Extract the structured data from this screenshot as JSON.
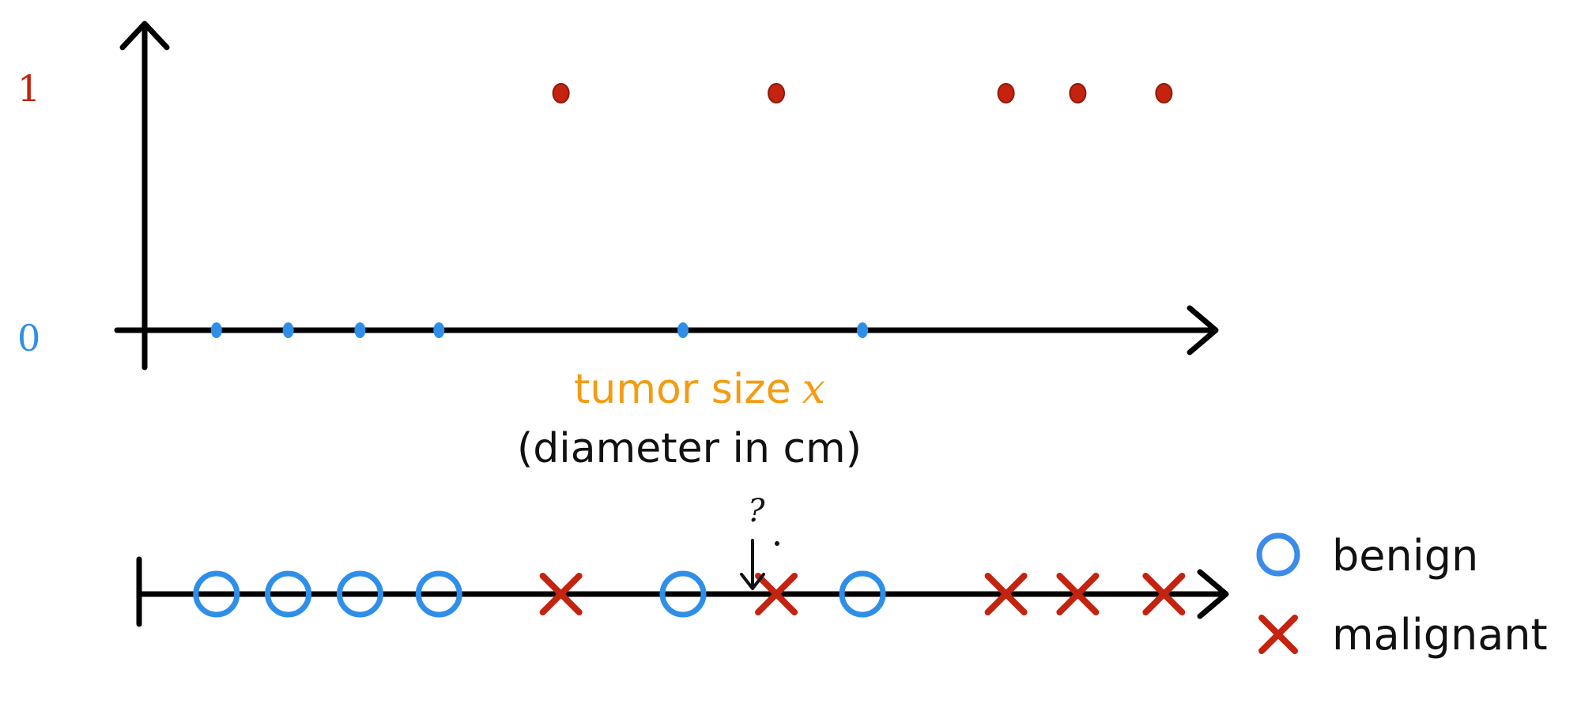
{
  "colors": {
    "benign": "#2f8fe8",
    "malignant": "#c3230f",
    "axis": "#000000",
    "xlabel": "#f39c12",
    "ytick_0": "#2f8fe8",
    "ytick_1": "#c3230f",
    "legend_benign": "#3b8be8",
    "legend_malignant": "#c3230f"
  },
  "chart_data": {
    "type": "scatter",
    "yticks": [
      "1",
      "0"
    ],
    "xlabel": "tumor size",
    "xlabel_var": "x",
    "xlabel_sub": "(diameter in cm)",
    "ylim": [
      0,
      1
    ],
    "x_range": [
      0,
      15
    ],
    "series": [
      {
        "name": "benign",
        "x": [
          1,
          2,
          3,
          4.1,
          7.5,
          10
        ],
        "y": [
          0,
          0,
          0,
          0,
          0,
          0
        ]
      },
      {
        "name": "malignant",
        "x": [
          5.8,
          8.8,
          12,
          13,
          14.2
        ],
        "y": [
          1,
          1,
          1,
          1,
          1
        ]
      }
    ]
  },
  "number_line": {
    "benign_x": [
      1,
      2,
      3,
      4.1,
      7.5,
      10
    ],
    "malignant_x": [
      5.8,
      8.8,
      12,
      13,
      14.2
    ],
    "query_label": "?",
    "query_x": 9.3
  },
  "legend": {
    "benign": "benign",
    "malignant": "malignant"
  }
}
